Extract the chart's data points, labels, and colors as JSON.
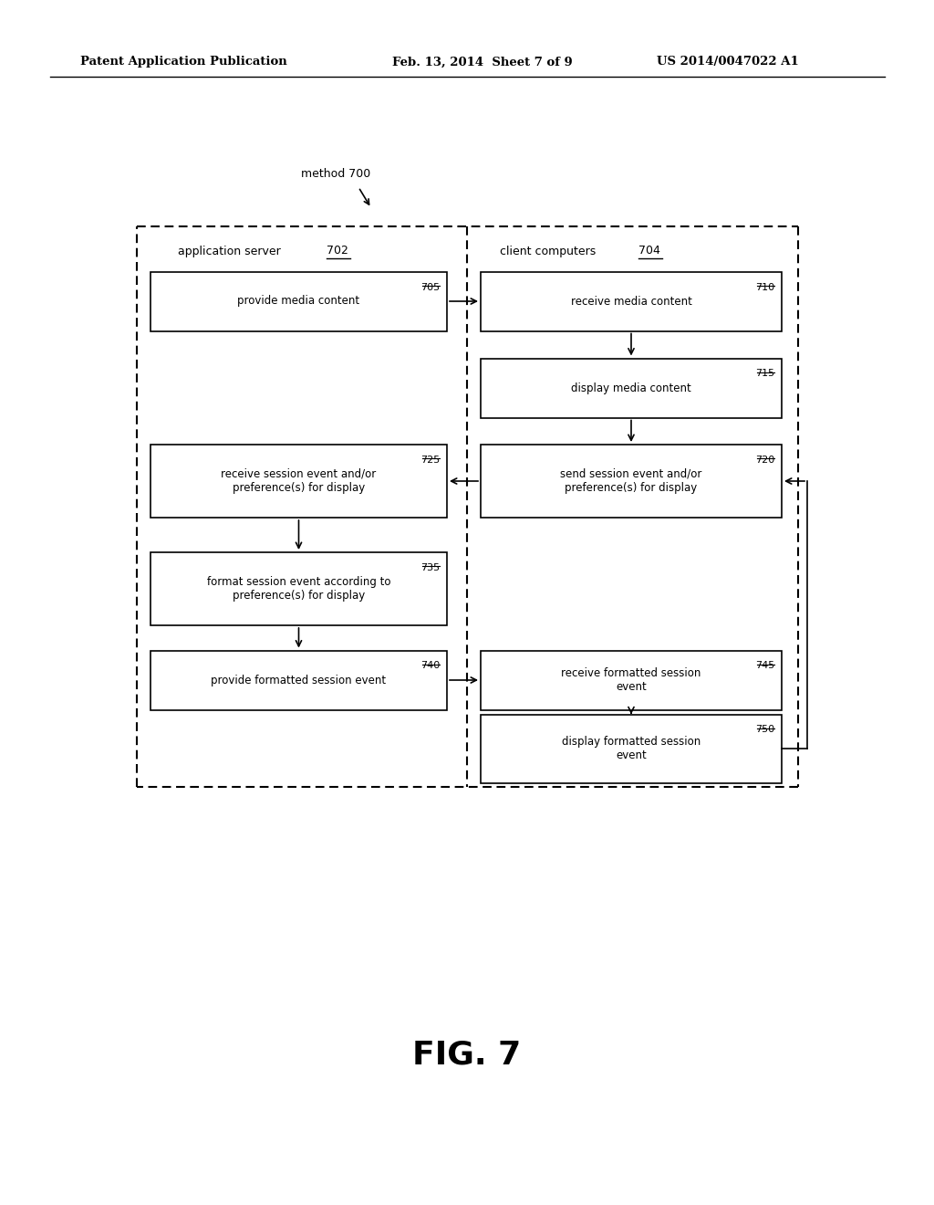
{
  "header_left": "Patent Application Publication",
  "header_mid": "Feb. 13, 2014  Sheet 7 of 9",
  "header_right": "US 2014/0047022 A1",
  "method_label": "method 700",
  "fig_label": "FIG. 7",
  "app_server_label": "application server ",
  "app_server_num": "702",
  "client_computers_label": "client computers ",
  "client_computers_num": "704",
  "boxes": [
    {
      "id": "705",
      "label": "provide media content",
      "col": "left",
      "row": 0
    },
    {
      "id": "710",
      "label": "receive media content",
      "col": "right",
      "row": 0
    },
    {
      "id": "715",
      "label": "display media content",
      "col": "right",
      "row": 1
    },
    {
      "id": "725",
      "label": "receive session event and/or\npreference(s) for display",
      "col": "left",
      "row": 2
    },
    {
      "id": "720",
      "label": "send session event and/or\npreference(s) for display",
      "col": "right",
      "row": 2
    },
    {
      "id": "735",
      "label": "format session event according to\npreference(s) for display",
      "col": "left",
      "row": 3
    },
    {
      "id": "740",
      "label": "provide formatted session event",
      "col": "left",
      "row": 4
    },
    {
      "id": "745",
      "label": "receive formatted session\nevent",
      "col": "right",
      "row": 4
    },
    {
      "id": "750",
      "label": "display formatted session\nevent",
      "col": "right",
      "row": 5
    }
  ],
  "background_color": "#ffffff",
  "text_color": "#000000"
}
